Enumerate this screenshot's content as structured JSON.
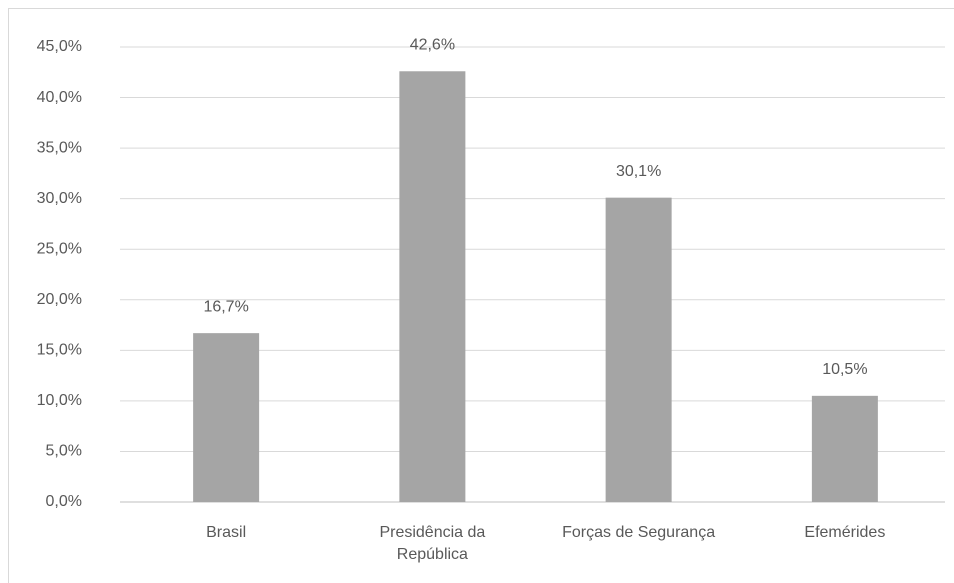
{
  "chart_data": {
    "type": "bar",
    "categories": [
      "Brasil",
      "Presidência da República",
      "Forças de Segurança",
      "Efemérides"
    ],
    "values": [
      16.7,
      42.6,
      30.1,
      10.5
    ],
    "value_labels": [
      "16,7%",
      "42,6%",
      "30,1%",
      "10,5%"
    ],
    "color": "#a5a5a5",
    "ylim": [
      0,
      45
    ],
    "yticks": [
      {
        "value": 0,
        "label": "0,0%"
      },
      {
        "value": 5,
        "label": "5,0%"
      },
      {
        "value": 10,
        "label": "10,0%"
      },
      {
        "value": 15,
        "label": "15,0%"
      },
      {
        "value": 20,
        "label": "20,0%"
      },
      {
        "value": 25,
        "label": "25,0%"
      },
      {
        "value": 30,
        "label": "30,0%"
      },
      {
        "value": 35,
        "label": "35,0%"
      },
      {
        "value": 40,
        "label": "40,0%"
      },
      {
        "value": 45,
        "label": "45,0%"
      }
    ],
    "grid": true
  }
}
